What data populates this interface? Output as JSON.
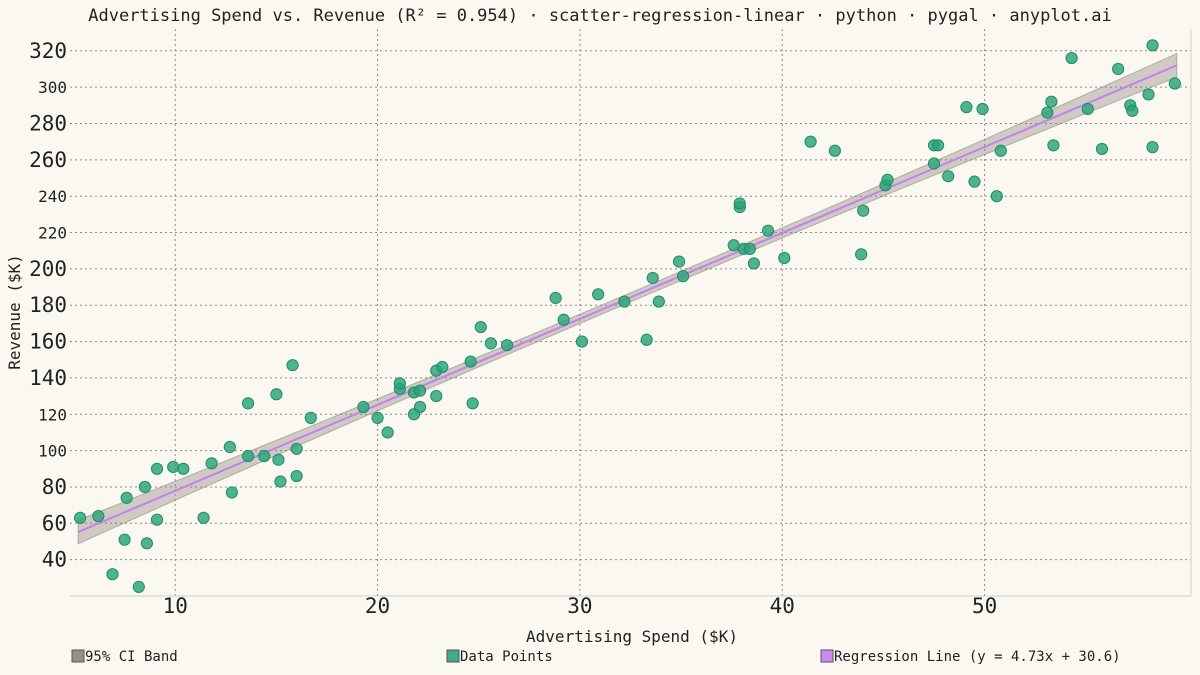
{
  "chart_data": {
    "type": "scatter",
    "title": "Advertising Spend vs. Revenue (R² = 0.954) · scatter-regression-linear · python · pygal · anyplot.ai",
    "xlabel": "Advertising Spend ($K)",
    "ylabel": "Revenue ($K)",
    "xlim": [
      4.8,
      60.2
    ],
    "ylim": [
      20,
      332
    ],
    "x_ticks": [
      10,
      20,
      30,
      40,
      50
    ],
    "y_ticks": [
      40,
      60,
      80,
      100,
      120,
      140,
      160,
      180,
      200,
      220,
      240,
      260,
      280,
      300,
      320
    ],
    "y_major_ticks": [
      40,
      60,
      80,
      140,
      160,
      180,
      200,
      260,
      280,
      320
    ],
    "grid": true,
    "legend_placement": "bottom",
    "colors": {
      "points": "#2aa37a",
      "regression": "#c47ff0",
      "ci_band": "#888278",
      "background": "#faf8f1"
    },
    "regression": {
      "slope": 4.73,
      "intercept": 30.6,
      "x_range": [
        5.2,
        59.5
      ],
      "ci_half_width_ends": 6.5,
      "ci_half_width_mid": 2.5
    },
    "legend": [
      {
        "key": "ci",
        "label": "95% CI Band",
        "color": "#888278"
      },
      {
        "key": "points",
        "label": "Data Points",
        "color": "#2aa37a"
      },
      {
        "key": "line",
        "label": "Regression Line (y = 4.73x + 30.6)",
        "color": "#c47ff0"
      }
    ],
    "series": [
      {
        "name": "Data Points",
        "points": [
          [
            5.3,
            63
          ],
          [
            6.2,
            64
          ],
          [
            6.9,
            32
          ],
          [
            7.5,
            51
          ],
          [
            7.6,
            74
          ],
          [
            8.2,
            25
          ],
          [
            8.5,
            80
          ],
          [
            8.6,
            49
          ],
          [
            9.1,
            62
          ],
          [
            9.1,
            90
          ],
          [
            9.9,
            91
          ],
          [
            10.4,
            90
          ],
          [
            11.4,
            63
          ],
          [
            11.8,
            93
          ],
          [
            12.7,
            102
          ],
          [
            12.8,
            77
          ],
          [
            13.6,
            126
          ],
          [
            13.6,
            97
          ],
          [
            14.4,
            97
          ],
          [
            15.0,
            131
          ],
          [
            15.1,
            95
          ],
          [
            15.2,
            83
          ],
          [
            15.8,
            147
          ],
          [
            16.0,
            101
          ],
          [
            16.0,
            86
          ],
          [
            16.7,
            118
          ],
          [
            19.3,
            124
          ],
          [
            20.0,
            118
          ],
          [
            20.5,
            110
          ],
          [
            21.1,
            134
          ],
          [
            21.1,
            137
          ],
          [
            21.8,
            132
          ],
          [
            21.8,
            120
          ],
          [
            22.1,
            133
          ],
          [
            22.1,
            124
          ],
          [
            22.9,
            130
          ],
          [
            22.9,
            144
          ],
          [
            23.2,
            146
          ],
          [
            24.6,
            149
          ],
          [
            24.7,
            126
          ],
          [
            25.1,
            168
          ],
          [
            25.6,
            159
          ],
          [
            26.4,
            158
          ],
          [
            28.8,
            184
          ],
          [
            29.2,
            172
          ],
          [
            30.1,
            160
          ],
          [
            30.9,
            186
          ],
          [
            32.2,
            182
          ],
          [
            33.3,
            161
          ],
          [
            33.6,
            195
          ],
          [
            33.9,
            182
          ],
          [
            34.9,
            204
          ],
          [
            35.1,
            196
          ],
          [
            37.6,
            213
          ],
          [
            37.9,
            234
          ],
          [
            37.9,
            236
          ],
          [
            38.1,
            211
          ],
          [
            38.4,
            211
          ],
          [
            38.6,
            203
          ],
          [
            39.3,
            221
          ],
          [
            40.1,
            206
          ],
          [
            41.4,
            270
          ],
          [
            42.6,
            265
          ],
          [
            43.9,
            208
          ],
          [
            44.0,
            232
          ],
          [
            45.1,
            246
          ],
          [
            45.2,
            249
          ],
          [
            47.5,
            268
          ],
          [
            47.5,
            258
          ],
          [
            47.7,
            268
          ],
          [
            48.2,
            251
          ],
          [
            49.1,
            289
          ],
          [
            49.5,
            248
          ],
          [
            49.9,
            288
          ],
          [
            50.6,
            240
          ],
          [
            50.8,
            265
          ],
          [
            53.1,
            286
          ],
          [
            53.3,
            292
          ],
          [
            53.4,
            268
          ],
          [
            54.3,
            316
          ],
          [
            55.1,
            288
          ],
          [
            55.8,
            266
          ],
          [
            56.6,
            310
          ],
          [
            57.2,
            290
          ],
          [
            57.3,
            287
          ],
          [
            58.1,
            296
          ],
          [
            58.3,
            323
          ],
          [
            58.3,
            267
          ],
          [
            59.4,
            302
          ]
        ]
      }
    ]
  }
}
